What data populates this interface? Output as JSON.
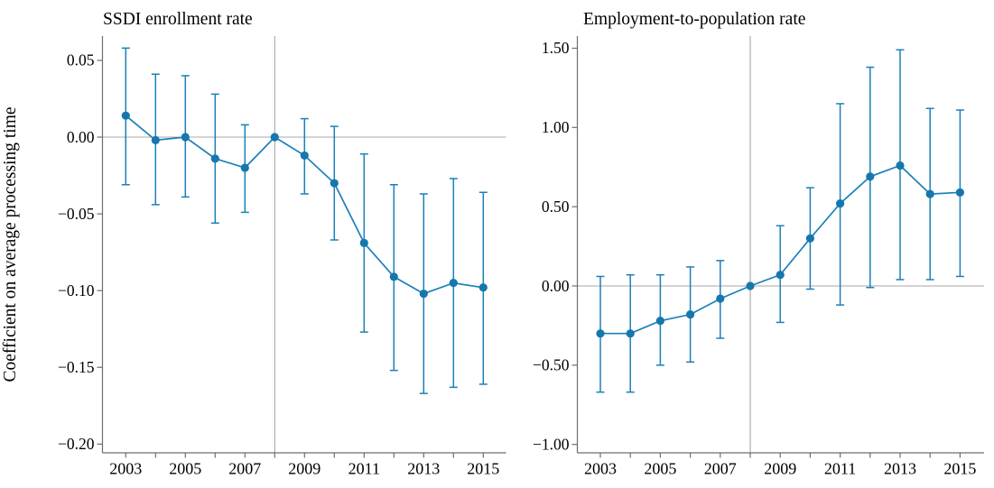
{
  "y_axis_label": "Coefficient on average processing time",
  "colors": {
    "series": "#1b80b8",
    "marker": "#1577ad",
    "reference_lines": "#a7a7a7",
    "axis": "#6e6e6e",
    "text": "#000000",
    "background": "#ffffff"
  },
  "chart_data": [
    {
      "type": "line",
      "title": "SSDI enrollment rate",
      "x": [
        2003,
        2004,
        2005,
        2006,
        2007,
        2008,
        2009,
        2010,
        2011,
        2012,
        2013,
        2014,
        2015
      ],
      "series": [
        {
          "name": "Coefficient on average processing time",
          "values": [
            0.014,
            -0.002,
            0.0,
            -0.014,
            -0.02,
            0.0,
            -0.012,
            -0.03,
            -0.069,
            -0.091,
            -0.102,
            -0.095,
            -0.098
          ]
        }
      ],
      "ci_low": [
        -0.031,
        -0.044,
        -0.039,
        -0.056,
        -0.049,
        null,
        -0.037,
        -0.067,
        -0.127,
        -0.152,
        -0.167,
        -0.163,
        -0.161
      ],
      "ci_high": [
        0.058,
        0.041,
        0.04,
        0.028,
        0.008,
        null,
        0.012,
        0.007,
        -0.011,
        -0.031,
        -0.037,
        -0.027,
        -0.036
      ],
      "reference_line_x": 2008,
      "hline": 0,
      "ylim": [
        -0.206,
        0.066
      ],
      "ytick_values": [
        0.05,
        0.0,
        -0.05,
        -0.1,
        -0.15,
        -0.2
      ],
      "ytick_labels": [
        "0.05",
        "0.00",
        "−0.05",
        "−0.10",
        "−0.15",
        "−0.20"
      ],
      "xtick_years": [
        2003,
        2004,
        2005,
        2006,
        2007,
        2008,
        2009,
        2010,
        2011,
        2012,
        2013,
        2014,
        2015
      ],
      "xtick_label_years": [
        "2003",
        "2005",
        "2007",
        "2009",
        "2011",
        "2013",
        "2015"
      ],
      "legend": "none",
      "grid": "off"
    },
    {
      "type": "line",
      "title": "Employment-to-population rate",
      "x": [
        2003,
        2004,
        2005,
        2006,
        2007,
        2008,
        2009,
        2010,
        2011,
        2012,
        2013,
        2014,
        2015
      ],
      "series": [
        {
          "name": "Coefficient on average processing time",
          "values": [
            -0.3,
            -0.3,
            -0.22,
            -0.18,
            -0.08,
            0.0,
            0.07,
            0.3,
            0.52,
            0.69,
            0.76,
            0.58,
            0.59
          ]
        }
      ],
      "ci_low": [
        -0.67,
        -0.67,
        -0.5,
        -0.48,
        -0.33,
        null,
        -0.23,
        -0.02,
        -0.12,
        -0.01,
        0.04,
        0.04,
        0.06
      ],
      "ci_high": [
        0.06,
        0.07,
        0.07,
        0.12,
        0.16,
        null,
        0.38,
        0.62,
        1.15,
        1.38,
        1.49,
        1.12,
        1.11
      ],
      "reference_line_x": 2008,
      "hline": 0,
      "ylim": [
        -1.06,
        1.58
      ],
      "ytick_values": [
        1.5,
        1.0,
        0.5,
        0.0,
        -0.5,
        -1.0
      ],
      "ytick_labels": [
        "1.50",
        "1.00",
        "0.50",
        "0.00",
        "−0.50",
        "−1.00"
      ],
      "xtick_years": [
        2003,
        2004,
        2005,
        2006,
        2007,
        2008,
        2009,
        2010,
        2011,
        2012,
        2013,
        2014,
        2015
      ],
      "xtick_label_years": [
        "2003",
        "2005",
        "2007",
        "2009",
        "2011",
        "2013",
        "2015"
      ],
      "legend": "none",
      "grid": "off"
    }
  ]
}
